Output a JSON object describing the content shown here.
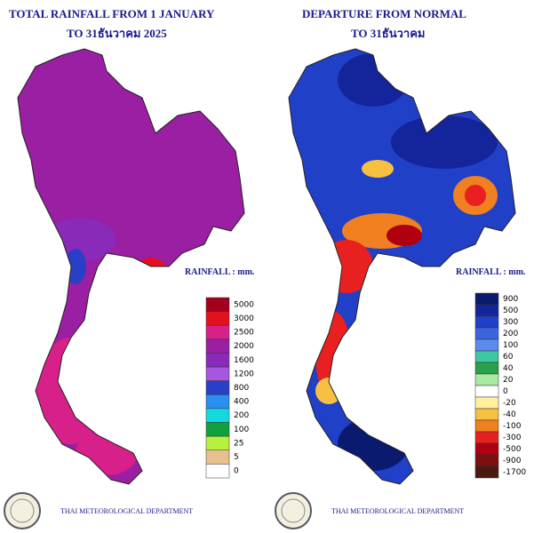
{
  "left_panel": {
    "title": "TOTAL RAINFALL FROM 1 JANUARY",
    "subtitle": "TO 31ธันวาคม 2025",
    "legend_title": "RAINFALL : mm.",
    "legend": {
      "labels": [
        "5000",
        "3000",
        "2500",
        "2000",
        "1600",
        "1200",
        "800",
        "400",
        "200",
        "100",
        "25",
        "5",
        "0"
      ],
      "colors": [
        "#a3001c",
        "#e3101e",
        "#d8208a",
        "#9a1fa3",
        "#8a2ab8",
        "#a656e0",
        "#2a3fc8",
        "#2a8ff0",
        "#14d8e0",
        "#10a040",
        "#b8f040",
        "#e8c090",
        "#ffffff"
      ]
    },
    "footer": "THAI METEOROLOGICAL DEPARTMENT"
  },
  "right_panel": {
    "title": "DEPARTURE FROM NORMAL",
    "subtitle": "TO 31ธันวาคม",
    "legend_title": "RAINFALL : mm.",
    "legend": {
      "labels": [
        "900",
        "500",
        "300",
        "200",
        "100",
        "60",
        "40",
        "20",
        "0",
        "-20",
        "-40",
        "-100",
        "-300",
        "-500",
        "-900",
        "-1700"
      ],
      "colors": [
        "#0a1a6e",
        "#14249a",
        "#2040c8",
        "#3a64e0",
        "#5a8cf0",
        "#3cc8a0",
        "#2aa04a",
        "#a8e8a0",
        "#ffffff",
        "#fff0a0",
        "#f8c040",
        "#f08020",
        "#e82020",
        "#b00010",
        "#7a1010",
        "#4a1a10"
      ]
    },
    "footer": "THAI METEOROLOGICAL DEPARTMENT"
  }
}
